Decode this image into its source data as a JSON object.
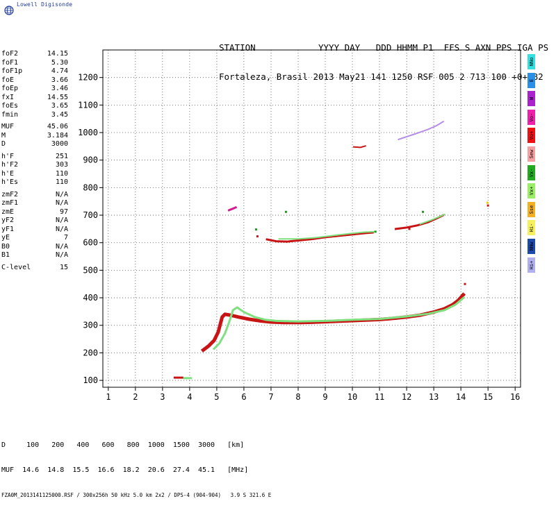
{
  "logo": {
    "name": "Lowell Digisonde"
  },
  "header": {
    "line1": "STATION            YYYY DAY   DDD HHMM P1  FFS S AXN PPS IGA PS",
    "line2": "Fortaleza, Brasil 2013 May21 141 1250 RSF 005 2 713 100 +0+ B2"
  },
  "params": [
    {
      "label": "foF2",
      "value": "14.15"
    },
    {
      "label": "foF1",
      "value": "5.30"
    },
    {
      "label": "foF1p",
      "value": "4.74"
    },
    {
      "label": "foE",
      "value": "3.66"
    },
    {
      "label": "foEp",
      "value": "3.46"
    },
    {
      "label": "fxI",
      "value": "14.55"
    },
    {
      "label": "foEs",
      "value": "3.65"
    },
    {
      "label": "fmin",
      "value": "3.45"
    },
    {
      "gap": true
    },
    {
      "label": "MUF",
      "value": "45.06"
    },
    {
      "label": "M",
      "value": "3.184"
    },
    {
      "label": "D",
      "value": "3000"
    },
    {
      "gap": true
    },
    {
      "label": "h'F",
      "value": "251"
    },
    {
      "label": "h'F2",
      "value": "303"
    },
    {
      "label": "h'E",
      "value": "110"
    },
    {
      "label": "h'Es",
      "value": "110"
    },
    {
      "gap": true
    },
    {
      "label": "zmF2",
      "value": "N/A"
    },
    {
      "label": "zmF1",
      "value": "N/A"
    },
    {
      "label": "zmE",
      "value": "97"
    },
    {
      "label": "yF2",
      "value": "N/A"
    },
    {
      "label": "yF1",
      "value": "N/A"
    },
    {
      "label": "yE",
      "value": "7"
    },
    {
      "label": "B0",
      "value": "N/A"
    },
    {
      "label": "B1",
      "value": "N/A"
    },
    {
      "gap": true
    },
    {
      "label": "C-level",
      "value": "15"
    }
  ],
  "legend": [
    {
      "label": "NNo",
      "color": "#33e0e0"
    },
    {
      "label": "E",
      "color": "#2a8fe6"
    },
    {
      "label": "W",
      "color": "#aa22cc"
    },
    {
      "label": "Vo-",
      "color": "#ee22aa"
    },
    {
      "label": "Vo+",
      "color": "#ee1111"
    },
    {
      "label": "Sew",
      "color": "#f4a0a0"
    },
    {
      "label": "Vx-",
      "color": "#22aa22"
    },
    {
      "label": "Vx+",
      "color": "#99ee66"
    },
    {
      "label": "Sse",
      "color": "#f2b022"
    },
    {
      "label": "Hi-",
      "color": "#f4f060"
    },
    {
      "label": "NNw",
      "color": "#1a4aaa"
    },
    {
      "label": "Hi+",
      "color": "#b0b0f0"
    }
  ],
  "footer": {
    "row1": "D     100   200   400   600   800  1000  1500  3000   [km]",
    "row2": "MUF  14.6  14.8  15.5  16.6  18.2  20.6  27.4  45.1   [MHz]",
    "file": "FZA0M_2013141125000.RSF / 300x256h 50 kHz 5.0 km 2x2 / DPS-4 (904-904)   3.9 S 321.6 E"
  },
  "colors": {
    "o_trace": "#c81414",
    "o_trace_dark": "#7a0a0a",
    "x_trace": "#7fe07f",
    "magenta": "#d41a8c",
    "purple": "#b48ce8",
    "green_dark": "#1e9a1e",
    "yellow": "#e8c800"
  },
  "chart_data": {
    "type": "scatter",
    "title": "",
    "xlabel": "",
    "ylabel": "",
    "xlim": [
      0.8,
      16.2
    ],
    "ylim": [
      75,
      1300
    ],
    "xticks": [
      1,
      2,
      3,
      4,
      5,
      6,
      7,
      8,
      9,
      10,
      11,
      12,
      13,
      14,
      15,
      16
    ],
    "yticks": [
      100,
      200,
      300,
      400,
      500,
      600,
      700,
      800,
      900,
      1000,
      1100,
      1200
    ],
    "grid": true,
    "series": [
      {
        "name": "",
        "color_key": "o_trace",
        "width": 5,
        "points": [
          [
            4.5,
            210
          ],
          [
            4.7,
            225
          ],
          [
            4.9,
            245
          ],
          [
            5.05,
            275
          ],
          [
            5.2,
            330
          ],
          [
            5.3,
            340
          ],
          [
            5.5,
            337
          ],
          [
            5.8,
            330
          ],
          [
            6.2,
            322
          ],
          [
            6.6,
            316
          ],
          [
            7.0,
            312
          ],
          [
            7.5,
            310
          ],
          [
            8.0,
            310
          ],
          [
            8.5,
            311
          ],
          [
            9.0,
            313
          ],
          [
            9.5,
            315
          ],
          [
            10.0,
            317
          ],
          [
            10.5,
            319
          ],
          [
            11.0,
            321
          ],
          [
            11.5,
            325
          ],
          [
            12.0,
            330
          ],
          [
            12.5,
            337
          ],
          [
            13.0,
            348
          ],
          [
            13.4,
            360
          ],
          [
            13.7,
            375
          ],
          [
            13.9,
            390
          ],
          [
            14.1,
            412
          ]
        ]
      },
      {
        "name": "",
        "color_key": "x_trace",
        "width": 3,
        "points": [
          [
            4.9,
            215
          ],
          [
            5.1,
            235
          ],
          [
            5.3,
            270
          ],
          [
            5.45,
            310
          ],
          [
            5.6,
            355
          ],
          [
            5.75,
            365
          ],
          [
            6.0,
            348
          ],
          [
            6.4,
            330
          ],
          [
            6.8,
            320
          ],
          [
            7.2,
            316
          ],
          [
            8.0,
            314
          ],
          [
            9.0,
            316
          ],
          [
            10.0,
            320
          ],
          [
            11.0,
            323
          ],
          [
            12.0,
            332
          ],
          [
            12.8,
            342
          ],
          [
            13.4,
            355
          ],
          [
            13.8,
            375
          ],
          [
            14.1,
            400
          ]
        ]
      },
      {
        "name": "",
        "color_key": "o_trace",
        "width": 3,
        "points": [
          [
            6.85,
            612
          ],
          [
            7.2,
            605
          ],
          [
            7.6,
            604
          ],
          [
            8.0,
            608
          ],
          [
            8.5,
            613
          ],
          [
            9.0,
            620
          ],
          [
            9.5,
            625
          ],
          [
            10.0,
            630
          ],
          [
            10.5,
            635
          ],
          [
            10.75,
            637
          ]
        ]
      },
      {
        "name": "",
        "color_key": "x_trace",
        "width": 2,
        "points": [
          [
            7.3,
            614
          ],
          [
            8.0,
            614
          ],
          [
            8.6,
            618
          ],
          [
            9.2,
            625
          ],
          [
            9.8,
            632
          ],
          [
            10.4,
            638
          ],
          [
            10.8,
            640
          ]
        ]
      },
      {
        "name": "",
        "color_key": "o_trace",
        "width": 3,
        "points": [
          [
            11.6,
            650
          ],
          [
            12.0,
            655
          ],
          [
            12.4,
            663
          ],
          [
            12.8,
            675
          ],
          [
            13.1,
            688
          ],
          [
            13.35,
            700
          ]
        ]
      },
      {
        "name": "",
        "color_key": "x_trace",
        "width": 2,
        "points": [
          [
            12.5,
            668
          ],
          [
            12.9,
            682
          ],
          [
            13.2,
            694
          ],
          [
            13.4,
            703
          ]
        ]
      },
      {
        "name": "",
        "color_key": "purple",
        "width": 2,
        "points": [
          [
            11.7,
            975
          ],
          [
            12.0,
            985
          ],
          [
            12.4,
            998
          ],
          [
            12.8,
            1012
          ],
          [
            13.1,
            1025
          ],
          [
            13.35,
            1040
          ]
        ]
      },
      {
        "name": "",
        "color_key": "o_trace",
        "width": 2,
        "points": [
          [
            10.05,
            948
          ],
          [
            10.3,
            946
          ],
          [
            10.5,
            952
          ]
        ]
      },
      {
        "name": "",
        "color_key": "magenta",
        "width": 3,
        "points": [
          [
            5.45,
            718
          ],
          [
            5.7,
            728
          ]
        ]
      },
      {
        "name": "",
        "color_key": "o_trace",
        "width": 3,
        "points": [
          [
            3.45,
            110
          ],
          [
            3.75,
            110
          ]
        ]
      },
      {
        "name": "",
        "color_key": "x_trace",
        "width": 3,
        "points": [
          [
            3.8,
            108
          ],
          [
            4.05,
            108
          ]
        ]
      }
    ],
    "markers": [
      {
        "color_key": "green_dark",
        "x": 6.45,
        "y": 648
      },
      {
        "color_key": "o_trace",
        "x": 6.5,
        "y": 623
      },
      {
        "color_key": "green_dark",
        "x": 7.55,
        "y": 712
      },
      {
        "color_key": "o_trace",
        "x": 12.1,
        "y": 650
      },
      {
        "color_key": "green_dark",
        "x": 12.6,
        "y": 712
      },
      {
        "color_key": "yellow",
        "x": 14.98,
        "y": 745
      },
      {
        "color_key": "o_trace",
        "x": 15.0,
        "y": 735
      },
      {
        "color_key": "o_trace",
        "x": 14.15,
        "y": 450
      },
      {
        "color_key": "green_dark",
        "x": 10.85,
        "y": 640
      }
    ]
  }
}
